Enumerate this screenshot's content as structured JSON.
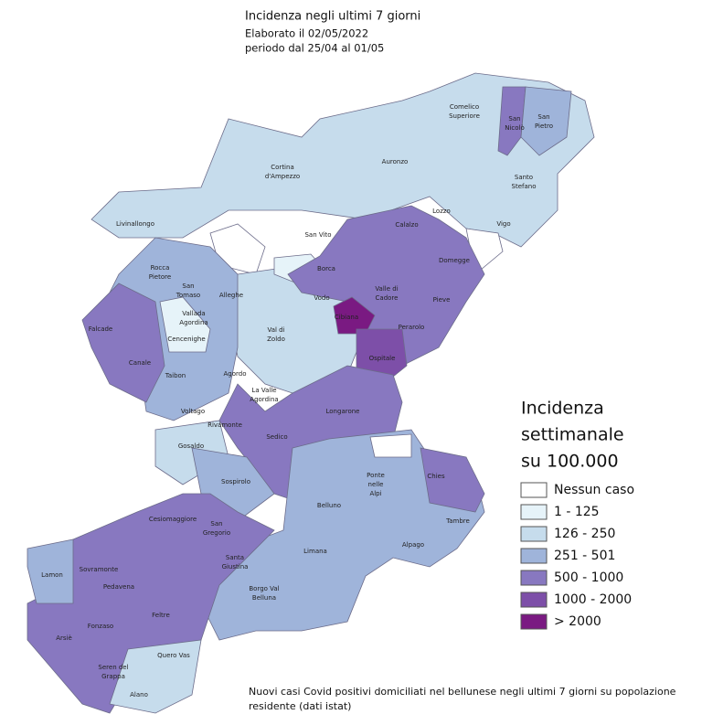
{
  "header": {
    "title": "Incidenza negli ultimi 7 giorni",
    "lines": [
      "Elaborato il 02/05/2022",
      "periodo dal 25/04 al 01/05"
    ]
  },
  "legend": {
    "title_lines": [
      "Incidenza",
      "settimanale",
      "su 100.000"
    ],
    "items": [
      {
        "label": "Nessun caso",
        "color": "#ffffff"
      },
      {
        "label": "1 - 125",
        "color": "#e6f3f9"
      },
      {
        "label": "126 - 250",
        "color": "#c6dcec"
      },
      {
        "label": "251 - 501",
        "color": "#9fb4da"
      },
      {
        "label": "500 - 1000",
        "color": "#8878c0"
      },
      {
        "label": "1000 - 2000",
        "color": "#7d4fa8"
      },
      {
        "label": "> 2000",
        "color": "#7a1a82"
      }
    ]
  },
  "map": {
    "municipalities": [
      [
        "Comelico",
        "Superiore"
      ],
      [
        "San",
        "Nicolò"
      ],
      [
        "San",
        "Pietro"
      ],
      [
        "Auronzo"
      ],
      [
        "Cortina",
        "d'Ampezzo"
      ],
      [
        "Santo",
        "Stefano"
      ],
      [
        "Lozzo"
      ],
      [
        "Vigo"
      ],
      [
        "Livinallongo"
      ],
      [
        "Calalzo"
      ],
      [
        "San Vito"
      ],
      [
        "Domegge"
      ],
      [
        "Borca"
      ],
      [
        "Rocca",
        "Pietore"
      ],
      [
        "San",
        "Tomaso"
      ],
      [
        "Alleghe"
      ],
      [
        "Vodo"
      ],
      [
        "Valle di",
        "Cadore"
      ],
      [
        "Pieve"
      ],
      [
        "Vallada",
        "Agordina"
      ],
      [
        "Falcade"
      ],
      [
        "Cibiana"
      ],
      [
        "Perarolo"
      ],
      [
        "Val di",
        "Zoldo"
      ],
      [
        "Cencenighe"
      ],
      [
        "Ospitale"
      ],
      [
        "Canale"
      ],
      [
        "Taibon"
      ],
      [
        "Agordo"
      ],
      [
        "La Valle",
        "Agordina"
      ],
      [
        "Voltago"
      ],
      [
        "Longarone"
      ],
      [
        "Rivamonte"
      ],
      [
        "Sedico"
      ],
      [
        "Gosaldo"
      ],
      [
        "Ponte",
        "nelle",
        "Alpi"
      ],
      [
        "Chies"
      ],
      [
        "Sospirolo"
      ],
      [
        "Belluno"
      ],
      [
        "Cesiomaggiore"
      ],
      [
        "San",
        "Gregorio"
      ],
      [
        "Tambre"
      ],
      [
        "Santa",
        "Giustina"
      ],
      [
        "Limana"
      ],
      [
        "Alpago"
      ],
      [
        "Lamon"
      ],
      [
        "Sovramonte"
      ],
      [
        "Pedavena"
      ],
      [
        "Borgo Val",
        "Belluna"
      ],
      [
        "Feltre"
      ],
      [
        "Fonzaso"
      ],
      [
        "Arsiè"
      ],
      [
        "Seren del",
        "Grappa"
      ],
      [
        "Quero Vas"
      ],
      [
        "Alano"
      ]
    ]
  },
  "footnote": [
    "Nuovi casi Covid positivi domiciliati nel bellunese negli ultimi 7 giorni su popolazione",
    "residente (dati istat)"
  ]
}
